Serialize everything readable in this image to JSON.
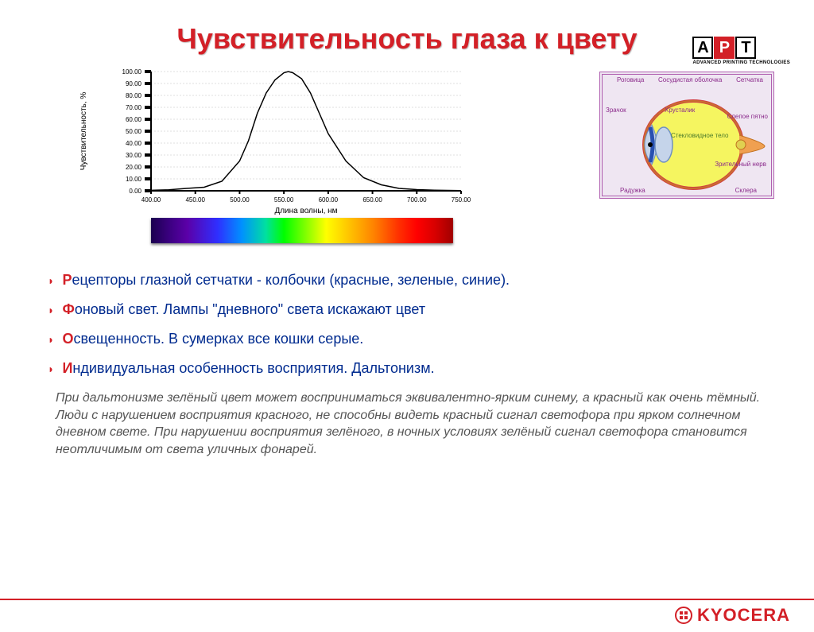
{
  "logo": {
    "letters": [
      "А",
      "Р",
      "Т"
    ],
    "sub": "ADVANCED PRINTING TECHNOLOGIES"
  },
  "title": "Чувствительность глаза к цвету",
  "sensitivity_chart": {
    "type": "line",
    "xlabel": "Длина волны, нм",
    "ylabel": "Чувствительность, %",
    "xlim": [
      400,
      750
    ],
    "ylim": [
      0,
      100
    ],
    "xtick_step": 50,
    "ytick_step": 10,
    "xticks": [
      400,
      450,
      500,
      550,
      600,
      650,
      700,
      750
    ],
    "yticks": [
      0,
      10,
      20,
      30,
      40,
      50,
      60,
      70,
      80,
      90,
      100
    ],
    "line_color": "#000000",
    "axis_color": "#000000",
    "grid_color": "#bfbfbf",
    "background_color": "#ffffff",
    "label_fontsize": 10,
    "tick_fontsize": 8,
    "data": {
      "x": [
        400,
        420,
        440,
        460,
        480,
        500,
        510,
        520,
        530,
        540,
        550,
        555,
        560,
        570,
        580,
        590,
        600,
        620,
        640,
        660,
        680,
        700,
        720,
        750
      ],
      "y": [
        0.4,
        0.8,
        2,
        3,
        8,
        25,
        42,
        65,
        82,
        93,
        99,
        100,
        99,
        94,
        82,
        65,
        48,
        25,
        11,
        5,
        2,
        1,
        0.5,
        0.2
      ]
    }
  },
  "spectrum": {
    "colors": [
      "#1b004f",
      "#3b0080",
      "#5b00a8",
      "#2f2fff",
      "#0090ff",
      "#00e0a0",
      "#00ff00",
      "#90ff00",
      "#ffff00",
      "#ffc000",
      "#ff8000",
      "#ff3000",
      "#ff0000",
      "#d80000",
      "#a00000"
    ]
  },
  "eye_diagram": {
    "labels": {
      "rogovitsa": "Роговица",
      "sosud": "Сосудистая оболочка",
      "setchatka": "Сетчатка",
      "zrachok": "Зрачок",
      "hrustalik": "Хрусталик",
      "slepoe": "Слепое пятно",
      "steklo": "Стекловидное тело",
      "radujka": "Радужка",
      "sklera": "Склера",
      "nerv": "Зрительный нерв"
    },
    "colors": {
      "vitreous": "#f5f560",
      "lens": "#c5d4ea",
      "iris": "#2850b0",
      "outline": "#d04040",
      "border": "#b060b0",
      "bg": "#efe6f2",
      "label": "#8b2a8b"
    }
  },
  "bullets": [
    {
      "first": "Р",
      "rest": "ецепторы глазной сетчатки - колбочки (красные, зеленые, синие)."
    },
    {
      "first": "Ф",
      "rest": "оновый свет. Лампы \"дневного\" света искажают цвет"
    },
    {
      "first": "О",
      "rest": "свещенность. В сумерках все кошки серые."
    },
    {
      "first": "И",
      "rest": "ндивидуальная особенность восприятия. Дальтонизм."
    }
  ],
  "paragraph": "При дальтонизме зелёный цвет может восприниматься эквивалентно-ярким синему, а красный как очень тёмный. Люди с нарушением восприятия красного, не способны видеть красный сигнал светофора при ярком солнечном дневном свете. При нарушении восприятия зелёного, в ночных условиях зелёный сигнал светофора становится неотличимым от света уличных фонарей.",
  "footer": {
    "brand": "KYOCERA"
  },
  "colors": {
    "accent": "#d32027",
    "heading": "#002b8f"
  }
}
